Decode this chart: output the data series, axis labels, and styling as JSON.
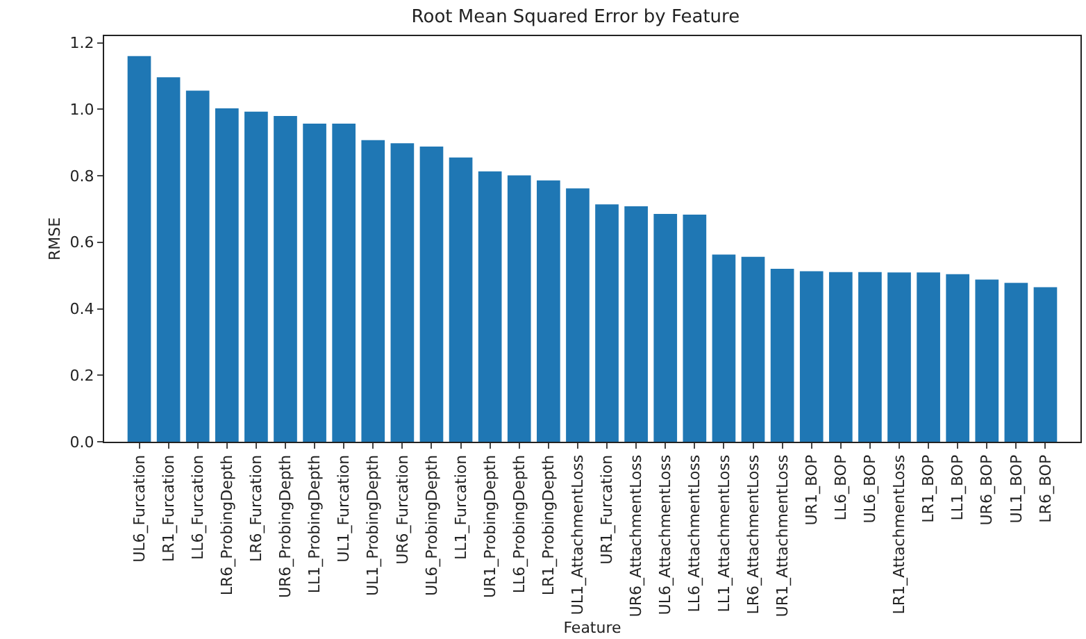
{
  "chart_data": {
    "type": "bar",
    "title": "Root Mean Squared Error by Feature",
    "xlabel": "Feature",
    "ylabel": "RMSE",
    "categories": [
      "UL6_Furcation",
      "LR1_Furcation",
      "LL6_Furcation",
      "LR6_ProbingDepth",
      "LR6_Furcation",
      "UR6_ProbingDepth",
      "LL1_ProbingDepth",
      "UL1_Furcation",
      "UL1_ProbingDepth",
      "UR6_Furcation",
      "UL6_ProbingDepth",
      "LL1_Furcation",
      "UR1_ProbingDepth",
      "LL6_ProbingDepth",
      "LR1_ProbingDepth",
      "UL1_AttachmentLoss",
      "UR1_Furcation",
      "UR6_AttachmentLoss",
      "UL6_AttachmentLoss",
      "LL6_AttachmentLoss",
      "LL1_AttachmentLoss",
      "LR6_AttachmentLoss",
      "UR1_AttachmentLoss",
      "UR1_BOP",
      "LL6_BOP",
      "UL6_BOP",
      "LR1_AttachmentLoss",
      "LR1_BOP",
      "LL1_BOP",
      "UR6_BOP",
      "UL1_BOP",
      "LR6_BOP"
    ],
    "values": [
      1.16,
      1.096,
      1.056,
      1.003,
      0.993,
      0.98,
      0.957,
      0.957,
      0.907,
      0.898,
      0.888,
      0.855,
      0.813,
      0.801,
      0.786,
      0.762,
      0.714,
      0.708,
      0.685,
      0.683,
      0.563,
      0.556,
      0.52,
      0.513,
      0.51,
      0.51,
      0.509,
      0.509,
      0.504,
      0.488,
      0.478,
      0.465
    ],
    "color": "#1f77b4",
    "ylim": [
      0,
      1.22
    ],
    "yticks": [
      {
        "value": 0,
        "label": "0.0"
      },
      0.2,
      0.4,
      0.6,
      0.8,
      {
        "value": 1,
        "label": "1.0"
      },
      1.2
    ],
    "grid": false
  }
}
